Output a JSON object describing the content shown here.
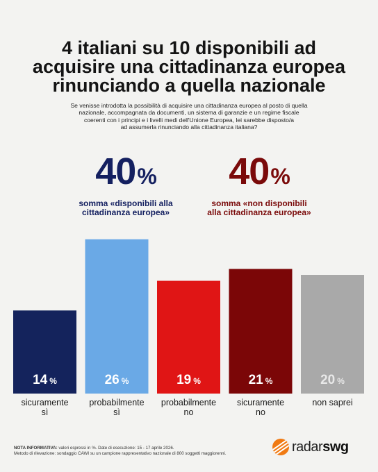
{
  "title_lines": [
    "4 italiani su 10 disponibili ad",
    "acquisire una cittadinanza europea",
    "rinunciando a quella nazionale"
  ],
  "intro_lines": [
    "Se venisse introdotta la possibilità di acquisire una cittadinanza europea al posto di quella",
    "nazionale, accompagnata da documenti, un sistema di garanzie e un regime fiscale",
    "coerenti con i principi e i livelli medi dell'Unione Europea, lei sarebbe disposto/a",
    "ad assumerla rinunciando alla cittadinanza italiana?"
  ],
  "stats": [
    {
      "value": "40",
      "unit": "%",
      "label_lines": [
        "somma «disponibili alla",
        "cittadinanza europea»"
      ],
      "color": "#142060"
    },
    {
      "value": "40",
      "unit": "%",
      "label_lines": [
        "somma «non disponibili",
        "alla cittadinanza europea»"
      ],
      "color": "#7a0a0a"
    }
  ],
  "chart_data": {
    "type": "bar",
    "categories": [
      [
        "sicuramente",
        "sì"
      ],
      [
        "probabilmente",
        "sì"
      ],
      [
        "probabilmente",
        "no"
      ],
      [
        "sicuramente",
        "no"
      ],
      [
        "non saprei"
      ]
    ],
    "values": [
      14,
      26,
      19,
      21,
      20
    ],
    "value_unit": "%",
    "colors": [
      "#14235c",
      "#6aa9e6",
      "#e01515",
      "#7b0607",
      "#a9a9a9"
    ]
  },
  "footer": {
    "note_label": "NOTA INFORMATIVA:",
    "note_text": " valori espressi in %. Date di esecuzione: 15 - 17 aprile 2026.",
    "method": "Metodo di rilevazione: sondaggio CAWI su un campione rappresentativo nazionale di 800 soggetti maggiorenni."
  },
  "brand": {
    "left": "radar",
    "right": "swg",
    "logo_icon": "radar-swg-logo-icon",
    "logo_color": "#f07a13"
  }
}
